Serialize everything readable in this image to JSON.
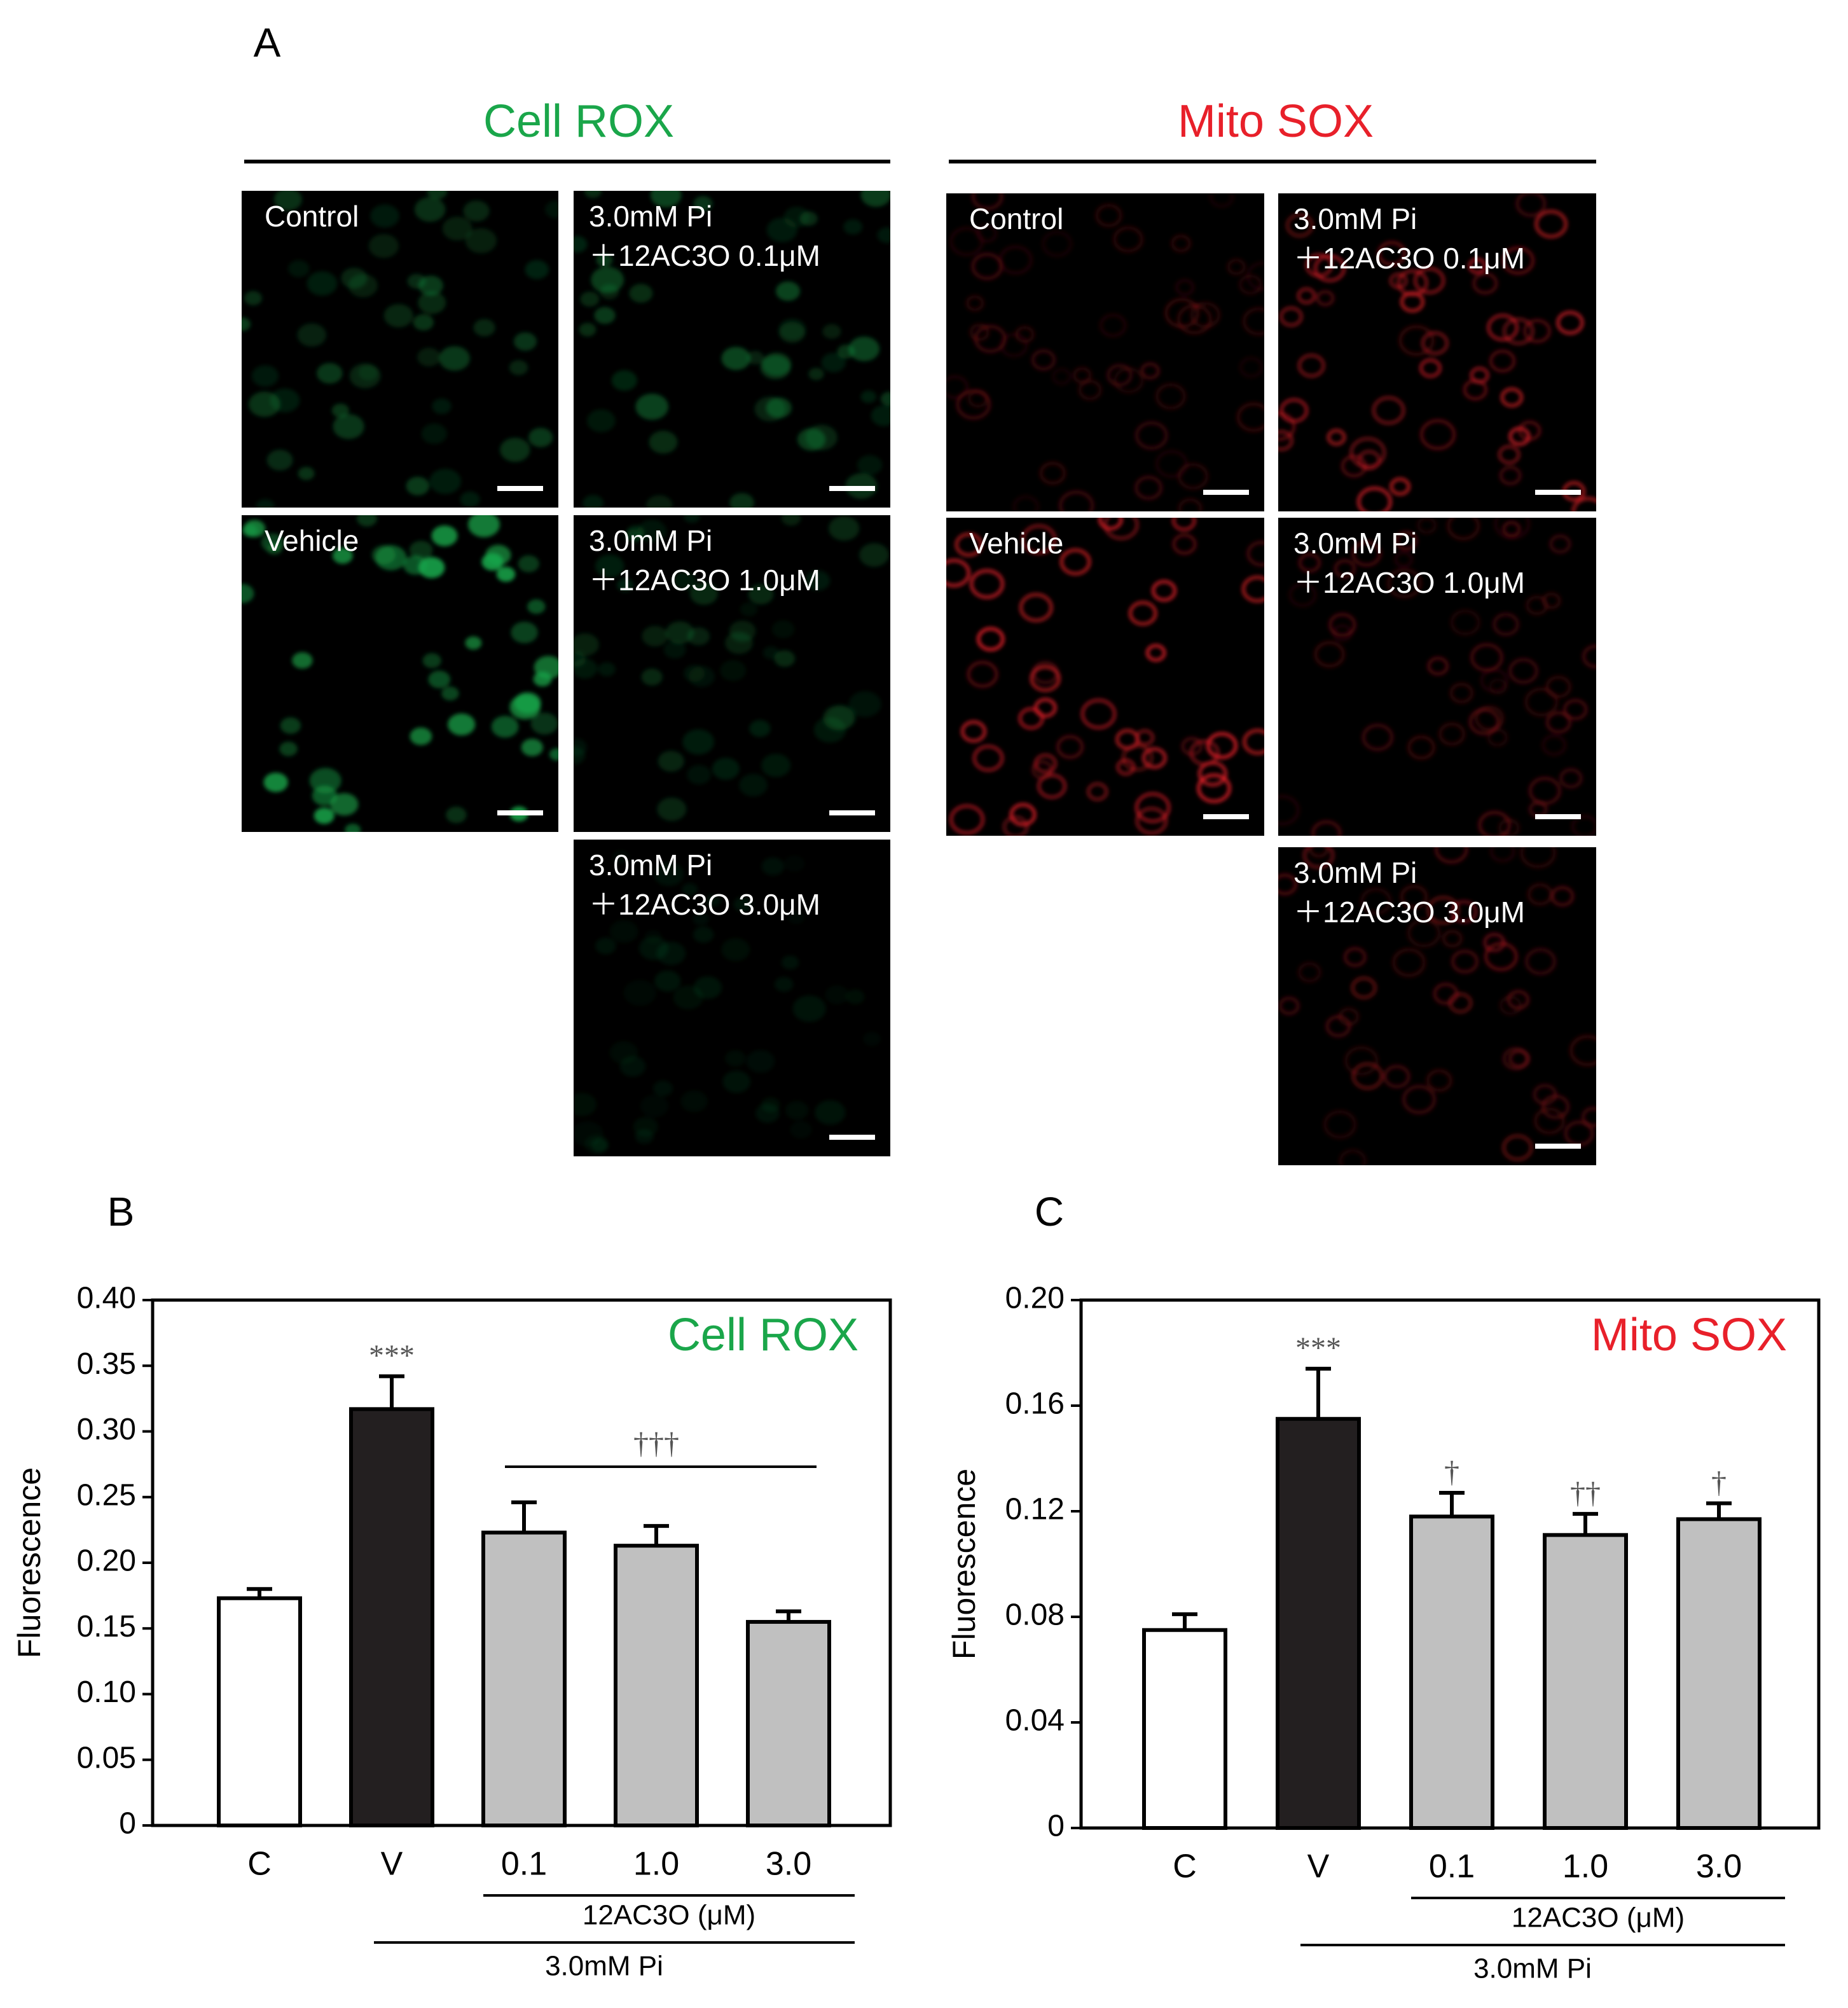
{
  "panel_a": {
    "label": "A",
    "groups": [
      {
        "title": "Cell ROX",
        "color": "#1aa64a",
        "images": [
          {
            "lines": [
              "Control"
            ]
          },
          {
            "lines": [
              "3.0mM Pi",
              "＋12AC3O 0.1μM"
            ]
          },
          {
            "lines": [
              "Vehicle"
            ]
          },
          {
            "lines": [
              "3.0mM Pi",
              "＋12AC3O 1.0μM"
            ]
          },
          {
            "lines": [
              "3.0mM Pi",
              "＋12AC3O 3.0μM"
            ]
          }
        ]
      },
      {
        "title": "Mito SOX",
        "color": "#e8202a",
        "images": [
          {
            "lines": [
              "Control"
            ]
          },
          {
            "lines": [
              "3.0mM Pi",
              "＋12AC3O 0.1μM"
            ]
          },
          {
            "lines": [
              "Vehicle"
            ]
          },
          {
            "lines": [
              "3.0mM Pi",
              "＋12AC3O 1.0μM"
            ]
          },
          {
            "lines": [
              "3.0mM Pi",
              "＋12AC3O 3.0μM"
            ]
          }
        ]
      }
    ]
  },
  "chart_data": [
    {
      "type": "bar",
      "panel_label": "B",
      "label": "Cell ROX",
      "label_color": "#1aa64a",
      "ylabel": "Fluorescence",
      "categories": [
        "C",
        "V",
        "0.1",
        "1.0",
        "3.0"
      ],
      "values": [
        0.173,
        0.317,
        0.223,
        0.213,
        0.155
      ],
      "errors": [
        0.007,
        0.025,
        0.023,
        0.015,
        0.008
      ],
      "colors": [
        "#ffffff",
        "#231f20",
        "#c0c0c0",
        "#c0c0c0",
        "#c0c0c0"
      ],
      "significance": [
        null,
        "***",
        null,
        null,
        null
      ],
      "group_significance": "†††",
      "group_label": "12AC3O (μM)",
      "condition_label": "3.0mM Pi",
      "ylim": [
        0,
        0.4
      ],
      "yticks": [
        0,
        0.05,
        {
          "value": 0.1,
          "label": "0.10"
        },
        0.15,
        {
          "value": 0.2,
          "label": "0.20"
        },
        0.25,
        {
          "value": 0.3,
          "label": "0.30"
        },
        0.35,
        {
          "value": 0.4,
          "label": "0.40"
        }
      ]
    },
    {
      "type": "bar",
      "panel_label": "C",
      "label": "Mito SOX",
      "label_color": "#e8202a",
      "ylabel": "Fluorescence",
      "categories": [
        "C",
        "V",
        "0.1",
        "1.0",
        "3.0"
      ],
      "values": [
        0.075,
        0.155,
        0.118,
        0.111,
        0.117
      ],
      "errors": [
        0.006,
        0.019,
        0.009,
        0.008,
        0.006
      ],
      "colors": [
        "#ffffff",
        "#231f20",
        "#c0c0c0",
        "#c0c0c0",
        "#c0c0c0"
      ],
      "significance": [
        null,
        "***",
        "†",
        "††",
        "†"
      ],
      "group_label": "12AC3O (μM)",
      "condition_label": "3.0mM Pi",
      "ylim": [
        0,
        0.2
      ],
      "yticks": [
        0,
        0.04,
        0.08,
        0.12,
        0.16,
        {
          "value": 0.2,
          "label": "0.20"
        }
      ]
    }
  ]
}
